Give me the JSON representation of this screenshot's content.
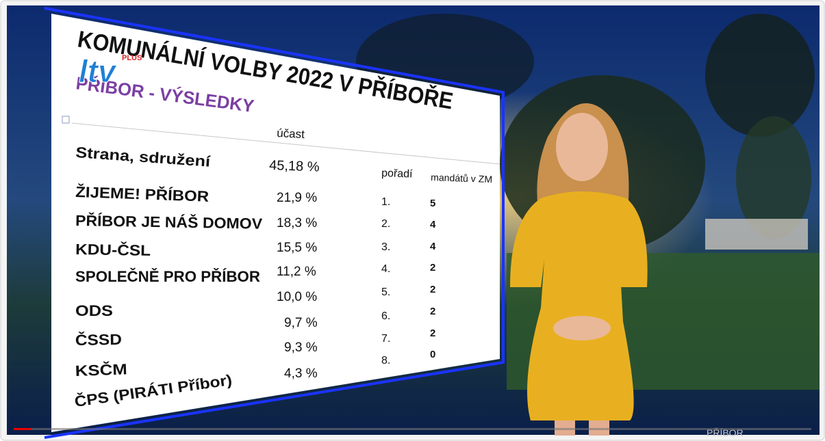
{
  "header": {
    "logo": "ltv",
    "logo_badge": "PLUS",
    "title": "KOMUNÁLNÍ VOLBY 2022 V PŘÍBOŘE",
    "subtitle": "PŘÍBOR - VÝSLEDKY"
  },
  "table": {
    "columns": [
      "Strana, sdružení",
      "účast",
      "pořadí",
      "mandátů v ZM"
    ],
    "turnout": "45,18 %",
    "rows": [
      [
        "ŽIJEME! PŘÍBOR",
        "21,9 %",
        "1.",
        "5"
      ],
      [
        "PŘÍBOR JE NÁŠ DOMOV",
        "18,3 %",
        "2.",
        "4"
      ],
      [
        "KDU-ČSL",
        "15,5 %",
        "3.",
        "4"
      ],
      [
        "SPOLEČNĚ PRO PŘÍBOR",
        "11,2 %",
        "4.",
        "2"
      ],
      [
        "ODS",
        "10,0 %",
        "5.",
        "2"
      ],
      [
        "ČSSD",
        "9,7 %",
        "6.",
        "2"
      ],
      [
        "KSČM",
        "9,3 %",
        "7.",
        "2"
      ],
      [
        "ČPS  (PIRÁTI Příbor)",
        "4,3 %",
        "8.",
        "0"
      ]
    ]
  },
  "footer": {
    "location": "PŘÍBOR"
  }
}
